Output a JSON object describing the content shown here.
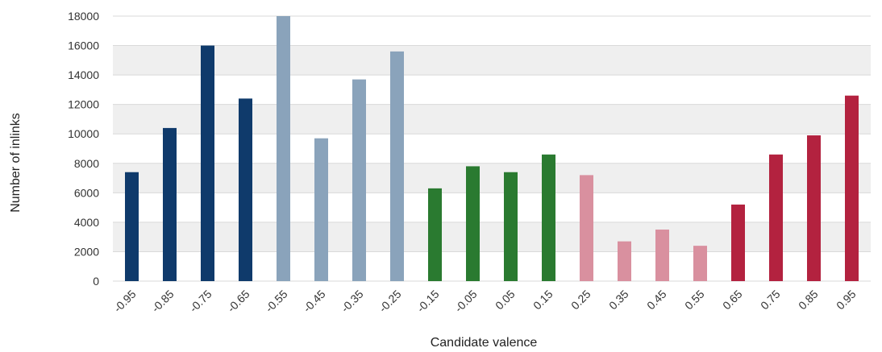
{
  "chart_data": {
    "type": "bar",
    "xlabel": "Candidate valence",
    "ylabel": "Number of inlinks",
    "ylim": [
      0,
      18000
    ],
    "yticks": [
      "0",
      "2000",
      "4000",
      "6000",
      "8000",
      "10000",
      "12000",
      "14000",
      "16000",
      "18000"
    ],
    "grid": "horizontal bands",
    "categories": [
      "-0.95",
      "-0.85",
      "-0.75",
      "-0.65",
      "-0.55",
      "-0.45",
      "-0.35",
      "-0.25",
      "-0.15",
      "-0.05",
      "0.05",
      "0.15",
      "0.25",
      "0.35",
      "0.45",
      "0.55",
      "0.65",
      "0.75",
      "0.85",
      "0.95"
    ],
    "values": [
      7400,
      10400,
      16000,
      12400,
      18000,
      9700,
      13700,
      15600,
      6300,
      7800,
      7400,
      8600,
      7200,
      2700,
      3500,
      2400,
      5200,
      8600,
      9900,
      12600
    ],
    "bar_colors": [
      "#0f3a6b",
      "#0f3a6b",
      "#0f3a6b",
      "#0f3a6b",
      "#8aa3bb",
      "#8aa3bb",
      "#8aa3bb",
      "#8aa3bb",
      "#2a7a30",
      "#2a7a30",
      "#2a7a30",
      "#2a7a30",
      "#d9909f",
      "#d9909f",
      "#d9909f",
      "#d9909f",
      "#b3223f",
      "#b3223f",
      "#b3223f",
      "#b3223f"
    ],
    "band_color": "#efefef",
    "gridline_color": "#d9d9d9"
  }
}
